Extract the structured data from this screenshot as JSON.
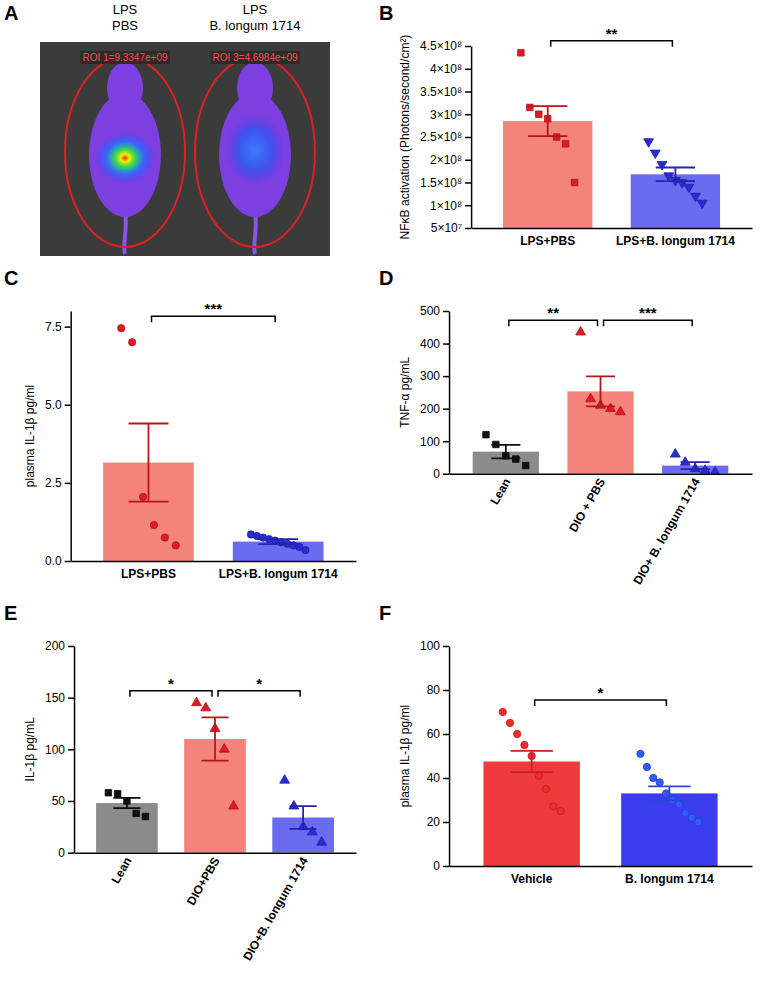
{
  "chart_data": [
    {
      "type": "image",
      "panel": "A",
      "categories": [
        [
          "LPS",
          "PBS"
        ],
        [
          "LPS",
          "B. longum 1714"
        ]
      ],
      "annotations": [
        "ROI 1=9.3347e+09",
        "ROI 3=4.6984e+09"
      ]
    },
    {
      "type": "bar",
      "panel": "B",
      "ylabel": "NFκB activation (Photons/second/cm²)",
      "categories": [
        "LPS+PBS",
        "LPS+B. longum 1714"
      ],
      "values": [
        285000000,
        168000000
      ],
      "errors": [
        33000000,
        15000000
      ],
      "colors": [
        "#f4837d",
        "#6b6bef"
      ],
      "points": [
        {
          "marker": "square",
          "color": "#e41a22",
          "values": [
            435000000,
            315000000,
            300000000,
            290000000,
            250000000,
            235000000,
            150000000
          ]
        },
        {
          "marker": "triangle-down",
          "color": "#2b2bd6",
          "values": [
            240000000,
            215000000,
            190000000,
            165000000,
            155000000,
            150000000,
            140000000,
            120000000,
            105000000
          ]
        }
      ],
      "significance": [
        {
          "between": [
            "LPS+PBS",
            "LPS+B. longum 1714"
          ],
          "label": "**"
        }
      ],
      "ylim": [
        50000000,
        450000000
      ],
      "yticks": [
        {
          "value": 50000000,
          "label": "5×10⁷"
        },
        {
          "value": 100000000,
          "label": "1×10⁸"
        },
        {
          "value": 150000000,
          "label": "1.5×10⁸"
        },
        {
          "value": 200000000,
          "label": "2×10⁸"
        },
        {
          "value": 250000000,
          "label": "2.5×10⁸"
        },
        {
          "value": 300000000,
          "label": "3×10⁸"
        },
        {
          "value": 350000000,
          "label": "3.5×10⁸"
        },
        {
          "value": 400000000,
          "label": "4×10⁸"
        },
        {
          "value": 450000000,
          "label": "4.5×10⁸"
        }
      ]
    },
    {
      "type": "bar",
      "panel": "C",
      "ylabel": "plasma IL-1β pg/ml",
      "categories": [
        "LPS+PBS",
        "LPS+B. longum 1714"
      ],
      "values": [
        3.15,
        0.62
      ],
      "errors": [
        1.25,
        0.08
      ],
      "colors": [
        "#f4837d",
        "#6b6bef"
      ],
      "points": [
        {
          "marker": "circle",
          "color": "#e41a22",
          "values": [
            7.45,
            7.0,
            2.05,
            1.15,
            0.75,
            0.5
          ]
        },
        {
          "marker": "circle",
          "color": "#2b2bd6",
          "values": [
            0.85,
            0.8,
            0.75,
            0.7,
            0.65,
            0.6,
            0.55,
            0.5,
            0.45,
            0.35
          ]
        }
      ],
      "significance": [
        {
          "between": [
            "LPS+PBS",
            "LPS+B. longum 1714"
          ],
          "label": "***"
        }
      ],
      "ylim": [
        0,
        8
      ],
      "yticks": [
        {
          "value": 0,
          "label": "0.0"
        },
        2.5,
        {
          "value": 5,
          "label": "5.0"
        },
        7.5
      ]
    },
    {
      "type": "bar",
      "panel": "D",
      "ylabel": "TNF-α pg/mL",
      "categories": [
        "Lean",
        "DIO + PBS",
        "DIO+ B. longum 1714"
      ],
      "values": [
        68,
        253,
        25
      ],
      "errors": [
        21,
        46,
        11
      ],
      "colors": [
        "#8c8c8c",
        "#f4837d",
        "#6b6bef"
      ],
      "points": [
        {
          "marker": "square",
          "color": "#111111",
          "values": [
            120,
            90,
            55,
            45,
            25
          ]
        },
        {
          "marker": "triangle",
          "color": "#e41a22",
          "values": [
            435,
            230,
            210,
            200,
            190
          ]
        },
        {
          "marker": "triangle",
          "color": "#2b2bd6",
          "values": [
            60,
            35,
            15,
            10,
            5
          ]
        }
      ],
      "significance": [
        {
          "between": [
            "Lean",
            "DIO + PBS"
          ],
          "label": "**"
        },
        {
          "between": [
            "DIO + PBS",
            "DIO+ B. longum 1714"
          ],
          "label": "***"
        }
      ],
      "ylim": [
        0,
        500
      ],
      "yticks": [
        0,
        100,
        200,
        300,
        400,
        500
      ]
    },
    {
      "type": "bar",
      "panel": "E",
      "ylabel": "IL-1β pg/mL",
      "categories": [
        "Lean",
        "DIO+PBS",
        "DIO+B. longum 1714"
      ],
      "values": [
        48,
        110,
        34
      ],
      "errors": [
        5,
        21,
        11
      ],
      "colors": [
        "#8c8c8c",
        "#f4837d",
        "#6b6bef"
      ],
      "points": [
        {
          "marker": "square",
          "color": "#111111",
          "values": [
            58,
            57,
            50,
            38,
            35
          ]
        },
        {
          "marker": "triangle",
          "color": "#e41a22",
          "values": [
            145,
            140,
            120,
            100,
            45
          ]
        },
        {
          "marker": "triangle",
          "color": "#2b2bd6",
          "values": [
            70,
            45,
            25,
            20,
            10
          ]
        }
      ],
      "significance": [
        {
          "between": [
            "Lean",
            "DIO+PBS"
          ],
          "label": "*"
        },
        {
          "between": [
            "DIO+PBS",
            "DIO+B. longum 1714"
          ],
          "label": "*"
        }
      ],
      "ylim": [
        0,
        200
      ],
      "yticks": [
        0,
        50,
        100,
        150,
        200
      ]
    },
    {
      "type": "bar",
      "panel": "F",
      "ylabel": "plasma IL-1β pg/ml",
      "categories": [
        "Vehicle",
        "B. longum 1714"
      ],
      "values": [
        47.5,
        33
      ],
      "errors": [
        4.8,
        3.2
      ],
      "colors": [
        "#ee3a3c",
        "#3b3bf0"
      ],
      "points": [
        {
          "marker": "circle",
          "color": "#f52a2a",
          "values": [
            70,
            65,
            60,
            55,
            50,
            41,
            35,
            27,
            25
          ]
        },
        {
          "marker": "circle",
          "color": "#2f5bff",
          "values": [
            51,
            45,
            40,
            38,
            33,
            30,
            28,
            24,
            22,
            20
          ]
        }
      ],
      "significance": [
        {
          "between": [
            "Vehicle",
            "B. longum 1714"
          ],
          "label": "*"
        }
      ],
      "ylim": [
        0,
        100
      ],
      "yticks": [
        0,
        20,
        40,
        60,
        80,
        100
      ]
    }
  ]
}
